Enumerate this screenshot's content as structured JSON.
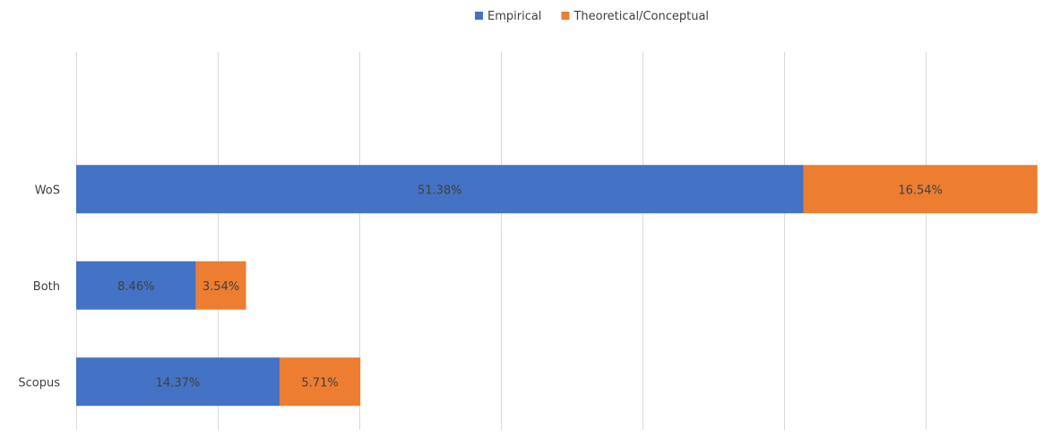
{
  "chart_data": {
    "type": "bar",
    "orientation": "horizontal",
    "stacked": true,
    "title": "",
    "xlabel": "",
    "ylabel": "",
    "categories": [
      "Scopus",
      "Both",
      "WoS"
    ],
    "series": [
      {
        "name": "Empirical",
        "color": "#4472C4",
        "values": [
          14.37,
          8.46,
          51.38
        ],
        "labels": [
          "14.37%",
          "8.46%",
          "51.38%"
        ]
      },
      {
        "name": "Theoretical/Conceptual",
        "color": "#ED7D31",
        "values": [
          5.71,
          3.54,
          16.54
        ],
        "labels": [
          "5.71%",
          "3.54%",
          "16.54%"
        ]
      }
    ],
    "xlim": [
      0,
      68
    ],
    "x_gridlines": [
      0,
      10,
      20,
      30,
      40,
      50,
      60
    ],
    "category_slots": 4,
    "legend_position": "top-right",
    "grid": true,
    "tick_labels_shown": false
  }
}
